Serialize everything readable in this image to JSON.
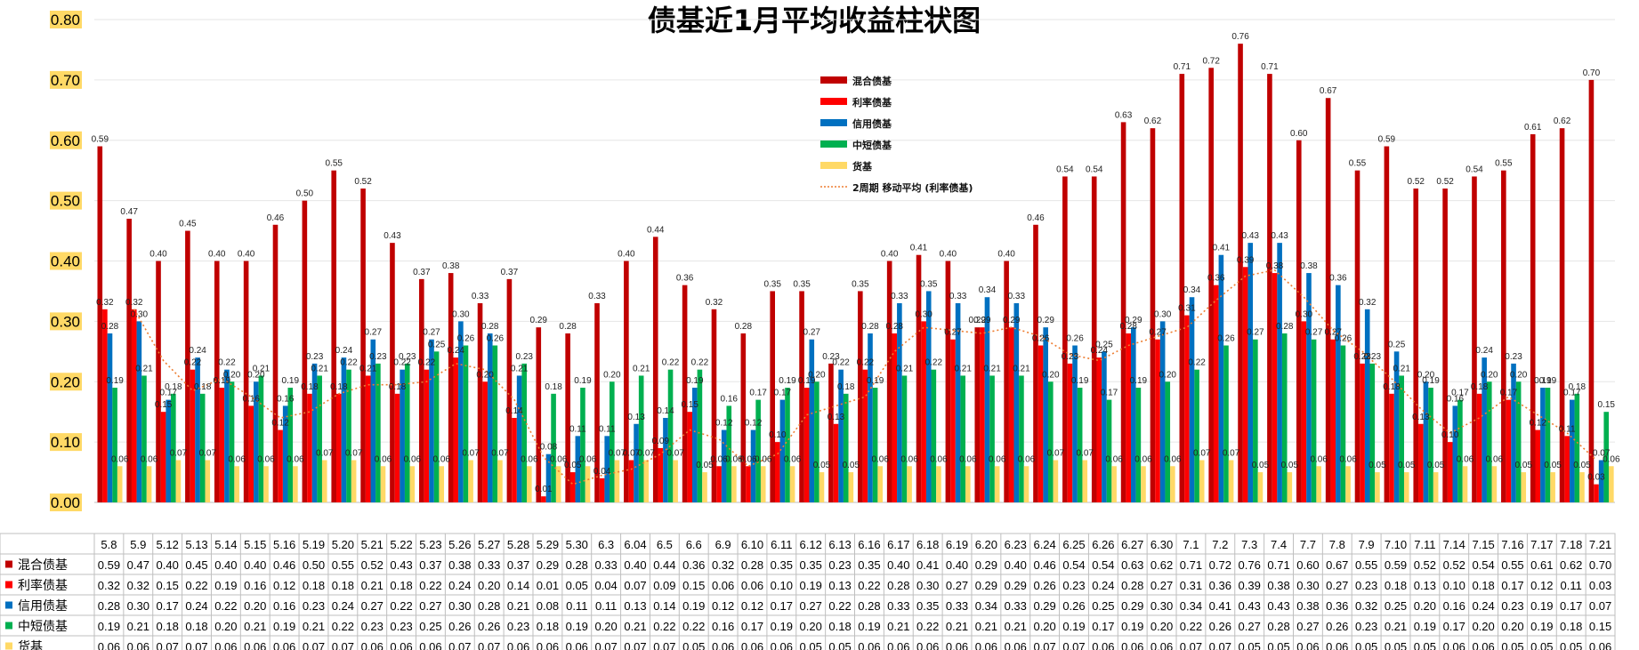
{
  "chart_data": {
    "type": "bar",
    "title": "债基近1月平均收益柱状图",
    "ylim": [
      0,
      0.8
    ],
    "yticks": [
      "0.00",
      "0.10",
      "0.20",
      "0.30",
      "0.40",
      "0.50",
      "0.60",
      "0.70",
      "0.80"
    ],
    "grid": true,
    "legend_position": "top-center",
    "categories": [
      "5.8",
      "5.9",
      "5.12",
      "5.13",
      "5.14",
      "5.15",
      "5.16",
      "5.19",
      "5.20",
      "5.21",
      "5.22",
      "5.23",
      "5.26",
      "5.27",
      "5.28",
      "5.29",
      "5.30",
      "6.3",
      "6.04",
      "6.5",
      "6.6",
      "6.9",
      "6.10",
      "6.11",
      "6.12",
      "6.13",
      "6.16",
      "6.17",
      "6.18",
      "6.19",
      "6.20",
      "6.23",
      "6.24",
      "6.25",
      "6.26",
      "6.27",
      "6.30",
      "7.1",
      "7.2",
      "7.3",
      "7.4",
      "7.7",
      "7.8",
      "7.9",
      "7.10",
      "7.11",
      "7.14",
      "7.15",
      "7.16",
      "7.17",
      "7.18",
      "7.21"
    ],
    "series": [
      {
        "name": "混合债基",
        "color": "#c00000",
        "values": [
          0.59,
          0.47,
          0.4,
          0.45,
          0.4,
          0.4,
          0.46,
          0.5,
          0.55,
          0.52,
          0.43,
          0.37,
          0.38,
          0.33,
          0.37,
          0.29,
          0.28,
          0.33,
          0.4,
          0.44,
          0.36,
          0.32,
          0.28,
          0.35,
          0.35,
          0.23,
          0.35,
          0.4,
          0.41,
          0.4,
          0.29,
          0.4,
          0.46,
          0.54,
          0.54,
          0.63,
          0.62,
          0.71,
          0.72,
          0.76,
          0.71,
          0.6,
          0.67,
          0.55,
          0.59,
          0.52,
          0.52,
          0.54,
          0.55,
          0.61,
          0.62,
          0.7
        ]
      },
      {
        "name": "利率债基",
        "color": "#ff0000",
        "values": [
          0.32,
          0.32,
          0.15,
          0.22,
          0.19,
          0.16,
          0.12,
          0.18,
          0.18,
          0.21,
          0.18,
          0.22,
          0.24,
          0.2,
          0.14,
          0.01,
          0.05,
          0.04,
          0.07,
          0.09,
          0.15,
          0.06,
          0.06,
          0.1,
          0.19,
          0.13,
          0.22,
          0.28,
          0.3,
          0.27,
          0.29,
          0.29,
          0.26,
          0.23,
          0.24,
          0.28,
          0.27,
          0.31,
          0.36,
          0.39,
          0.38,
          0.3,
          0.27,
          0.23,
          0.18,
          0.13,
          0.1,
          0.18,
          0.17,
          0.12,
          0.11,
          0.03
        ]
      },
      {
        "name": "信用债基",
        "color": "#0070c0",
        "values": [
          0.28,
          0.3,
          0.17,
          0.24,
          0.22,
          0.2,
          0.16,
          0.23,
          0.24,
          0.27,
          0.22,
          0.27,
          0.3,
          0.28,
          0.21,
          0.08,
          0.11,
          0.11,
          0.13,
          0.14,
          0.19,
          0.12,
          0.12,
          0.17,
          0.27,
          0.22,
          0.28,
          0.33,
          0.35,
          0.33,
          0.34,
          0.33,
          0.29,
          0.26,
          0.25,
          0.29,
          0.3,
          0.34,
          0.41,
          0.43,
          0.43,
          0.38,
          0.36,
          0.32,
          0.25,
          0.2,
          0.16,
          0.24,
          0.23,
          0.19,
          0.17,
          0.07
        ]
      },
      {
        "name": "中短债基",
        "color": "#00b050",
        "values": [
          0.19,
          0.21,
          0.18,
          0.18,
          0.2,
          0.21,
          0.19,
          0.21,
          0.22,
          0.23,
          0.23,
          0.25,
          0.26,
          0.26,
          0.23,
          0.18,
          0.19,
          0.2,
          0.21,
          0.22,
          0.22,
          0.16,
          0.17,
          0.19,
          0.2,
          0.18,
          0.19,
          0.21,
          0.22,
          0.21,
          0.21,
          0.21,
          0.2,
          0.19,
          0.17,
          0.19,
          0.2,
          0.22,
          0.26,
          0.27,
          0.28,
          0.27,
          0.26,
          0.23,
          0.21,
          0.19,
          0.17,
          0.2,
          0.2,
          0.19,
          0.18,
          0.15
        ]
      },
      {
        "name": "货基",
        "color": "#ffd966",
        "values": [
          0.06,
          0.06,
          0.07,
          0.07,
          0.06,
          0.06,
          0.06,
          0.07,
          0.07,
          0.06,
          0.06,
          0.06,
          0.07,
          0.07,
          0.06,
          0.06,
          0.06,
          0.07,
          0.07,
          0.07,
          0.05,
          0.06,
          0.06,
          0.06,
          0.05,
          0.05,
          0.06,
          0.06,
          0.06,
          0.06,
          0.06,
          0.06,
          0.07,
          0.07,
          0.06,
          0.06,
          0.06,
          0.07,
          0.07,
          0.05,
          0.05,
          0.06,
          0.06,
          0.05,
          0.05,
          0.05,
          0.06,
          0.06,
          0.05,
          0.05,
          0.05,
          0.06
        ]
      }
    ],
    "trendline": {
      "name": "2周期 移动平均 (利率债基)",
      "color": "#ed7d31",
      "style": "dotted"
    }
  }
}
